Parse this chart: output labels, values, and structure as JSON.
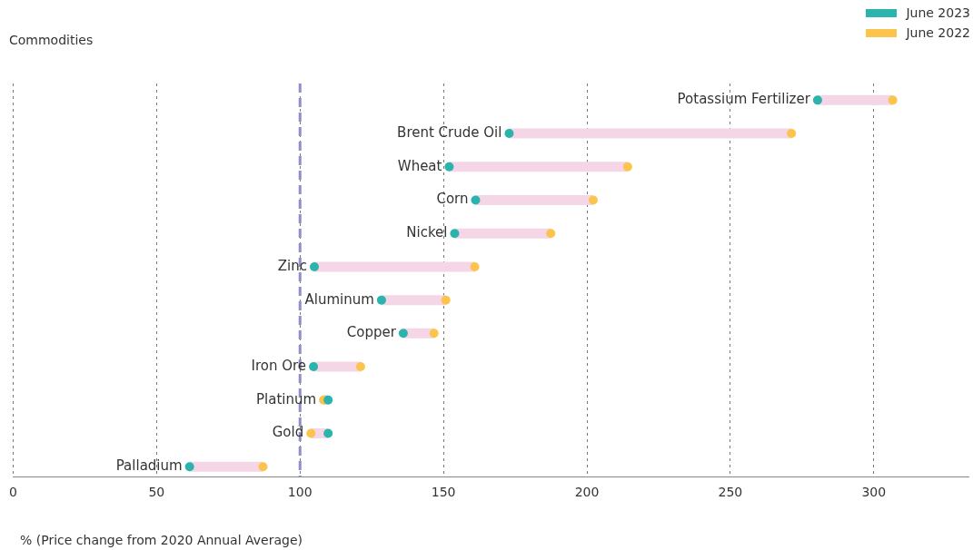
{
  "chart_data": {
    "type": "scatter",
    "orientation": "horizontal",
    "ylabel": "Commodities",
    "xlabel": "% (Price change from 2020 Annual Average)",
    "categories": [
      "Potassium Fertilizer",
      "Brent Crude Oil",
      "Wheat",
      "Corn",
      "Nickel",
      "Zinc",
      "Aluminum",
      "Copper",
      "Iron Ore",
      "Platinum",
      "Gold",
      "Palladium"
    ],
    "series": [
      {
        "name": "June 2023",
        "color": "#2bb3ad",
        "values": [
          280.4,
          172.9,
          152,
          161.2,
          153.9,
          105,
          128.4,
          136,
          104.7,
          109.8,
          109.8,
          61.5
        ]
      },
      {
        "name": "June 2022",
        "color": "#fcc44c",
        "values": [
          306.6,
          271.3,
          214.2,
          202.2,
          187.4,
          160.9,
          150.8,
          146.7,
          121.1,
          108.2,
          103.8,
          87.1
        ]
      }
    ],
    "xlim": [
      0,
      333
    ],
    "xticks": [
      0,
      50,
      100,
      150,
      200,
      250,
      300
    ],
    "grid": "x",
    "legend": "top right",
    "marker": "circle",
    "ref_lines": [
      {
        "axis": "x",
        "value": 100,
        "color": "#8c8fcc",
        "line_style": "dashed"
      }
    ]
  }
}
